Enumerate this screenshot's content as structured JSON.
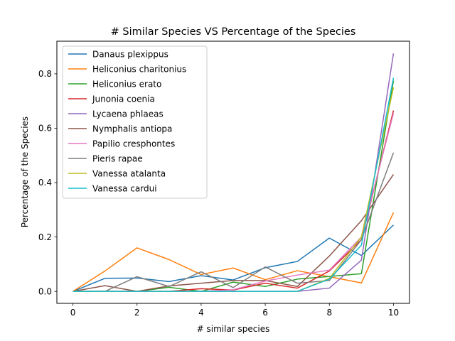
{
  "chart_data": {
    "type": "line",
    "title": "# Similar Species VS Percentage of the Species",
    "xlabel": "# similar species",
    "ylabel": "Percentage of the Species",
    "xlim": [
      -0.5,
      10.5
    ],
    "ylim": [
      -0.044,
      0.92
    ],
    "xticks": [
      0,
      2,
      4,
      6,
      8,
      10
    ],
    "yticks": [
      0.0,
      0.2,
      0.4,
      0.6,
      0.8
    ],
    "ytick_labels": [
      "0.0",
      "0.2",
      "0.4",
      "0.6",
      "0.8"
    ],
    "grid": false,
    "legend_position": "top-left",
    "x": [
      0,
      1,
      2,
      3,
      4,
      5,
      6,
      7,
      8,
      9,
      10
    ],
    "series": [
      {
        "name": "Danaus plexippus",
        "color": "#1f77b4",
        "values": [
          0,
          0.048,
          0.049,
          0.036,
          0.058,
          0.042,
          0.087,
          0.11,
          0.196,
          0.132,
          0.244
        ]
      },
      {
        "name": "Heliconius charitonius",
        "color": "#ff7f0e",
        "values": [
          0,
          0.075,
          0.16,
          0.117,
          0.062,
          0.086,
          0.043,
          0.076,
          0.054,
          0.031,
          0.29
        ]
      },
      {
        "name": "Heliconius erato",
        "color": "#2ca02c",
        "values": [
          0,
          0,
          0,
          0.015,
          0,
          0.034,
          0.018,
          0.045,
          0.055,
          0.065,
          0.775
        ]
      },
      {
        "name": "Junonia coenia",
        "color": "#d62728",
        "values": [
          0,
          0,
          0,
          0,
          0.01,
          0.005,
          0.03,
          0.012,
          0.075,
          0.19,
          0.665
        ]
      },
      {
        "name": "Lycaena phlaeas",
        "color": "#9467bd",
        "values": [
          0,
          0,
          0,
          0,
          0,
          0,
          0,
          0,
          0.012,
          0.115,
          0.875
        ]
      },
      {
        "name": "Nymphalis antiopa",
        "color": "#8c564b",
        "values": [
          0,
          0.021,
          0,
          0.02,
          0.03,
          0.04,
          0.04,
          0.018,
          0.13,
          0.26,
          0.43
        ]
      },
      {
        "name": "Papilio cresphontes",
        "color": "#e377c2",
        "values": [
          0,
          0,
          0,
          0,
          0,
          0.006,
          0.038,
          0.06,
          0.078,
          0.2,
          0.655
        ]
      },
      {
        "name": "Pieris rapae",
        "color": "#7f7f7f",
        "values": [
          0,
          0,
          0.054,
          0.018,
          0.072,
          0.014,
          0.09,
          0.03,
          0.04,
          0.19,
          0.51
        ]
      },
      {
        "name": "Vanessa atalanta",
        "color": "#bcbd22",
        "values": [
          0,
          0,
          0,
          0,
          0,
          0,
          0,
          0,
          0.048,
          0.2,
          0.75
        ]
      },
      {
        "name": "Vanessa cardui",
        "color": "#17becf",
        "values": [
          0,
          0,
          0,
          0,
          0,
          0,
          0,
          0,
          0.045,
          0.17,
          0.785
        ]
      }
    ]
  }
}
